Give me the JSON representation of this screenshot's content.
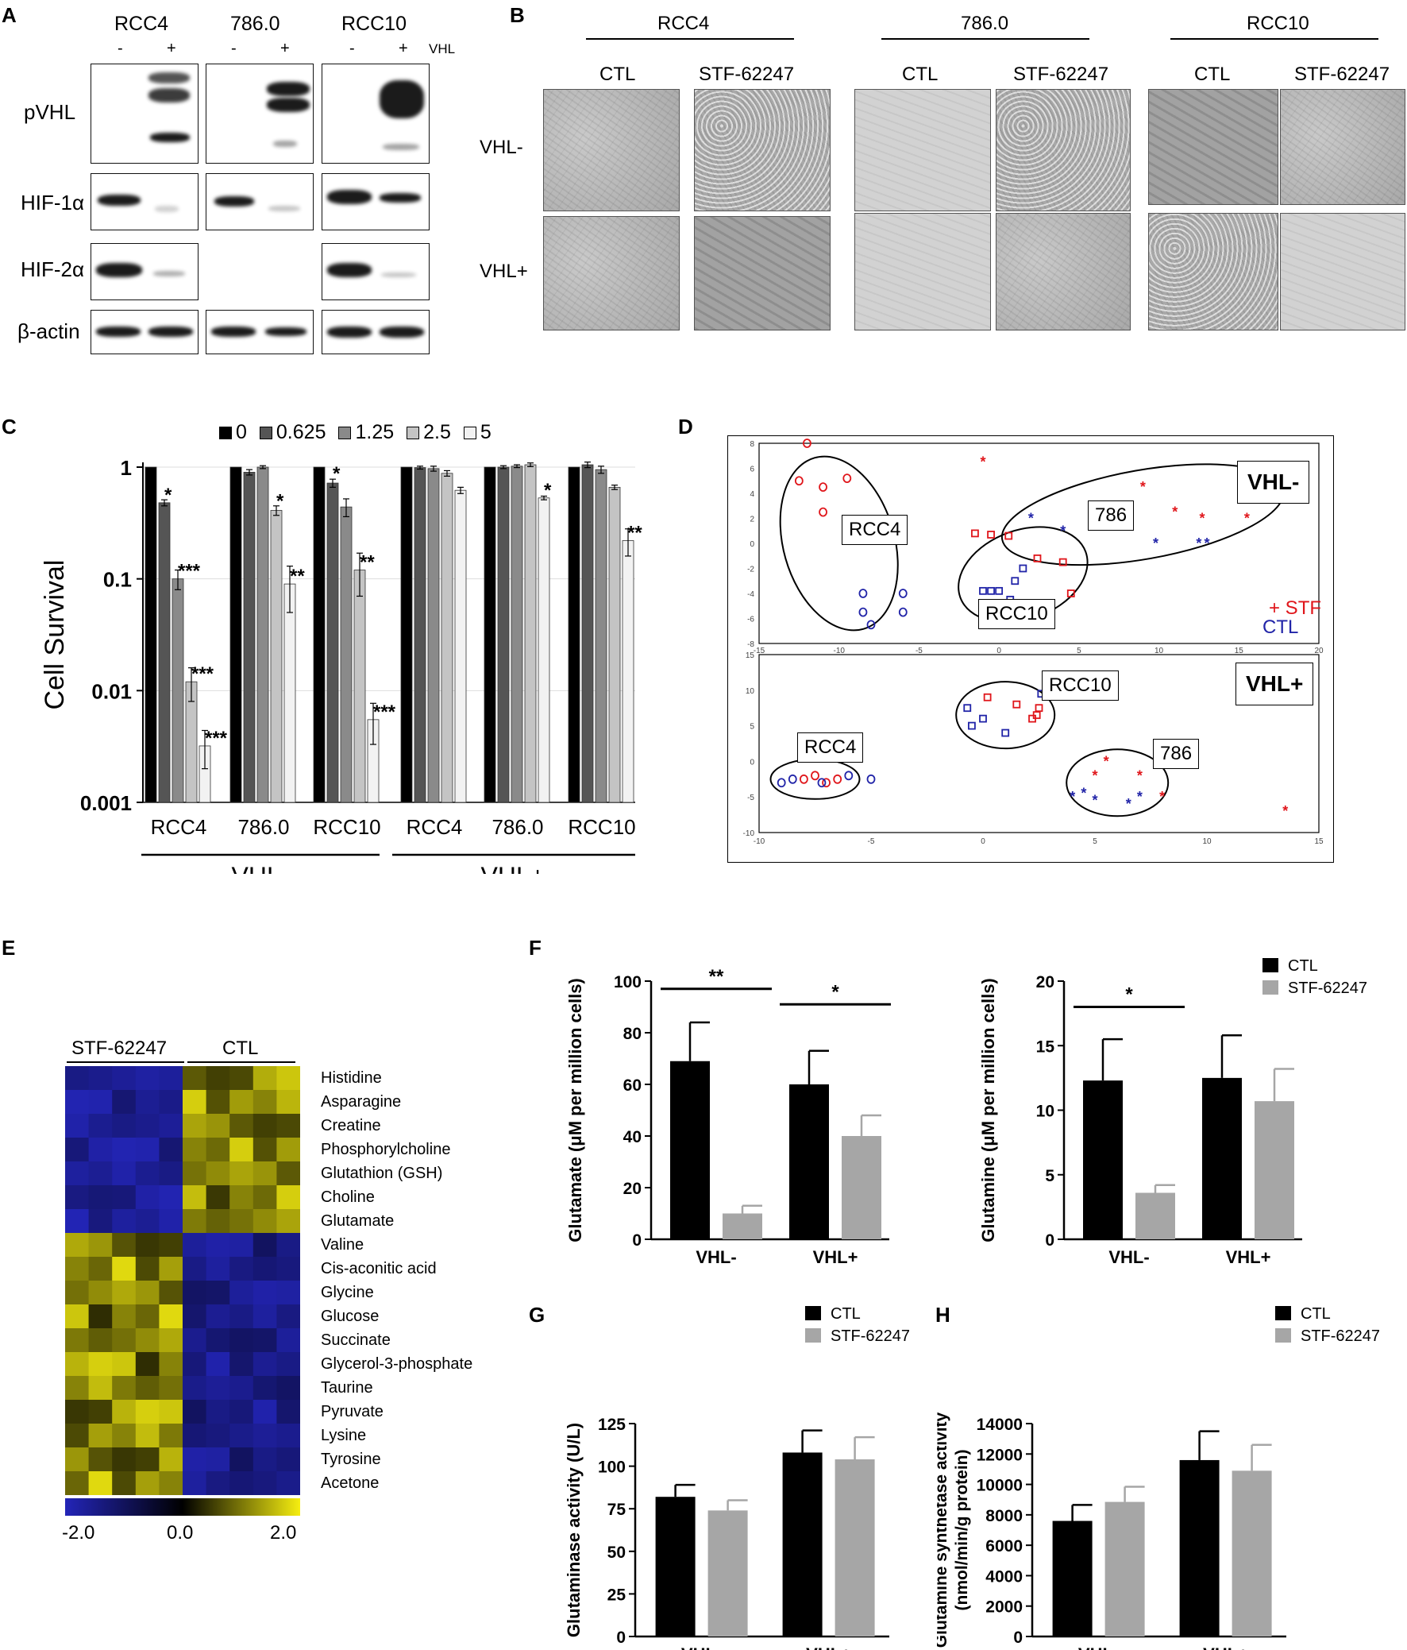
{
  "panelA": {
    "label": "A",
    "lines": [
      "RCC4",
      "786.0",
      "RCC10"
    ],
    "vhl_marks": [
      "-",
      "+",
      "-",
      "+",
      "-",
      "+"
    ],
    "vhl_label": "VHL",
    "rows": [
      "pVHL",
      "HIF-1α",
      "HIF-2α",
      "β-actin"
    ]
  },
  "panelB": {
    "label": "B",
    "lines": [
      "RCC4",
      "786.0",
      "RCC10"
    ],
    "conditions": [
      "CTL",
      "STF-62247"
    ],
    "rows": [
      "VHL-",
      "VHL+"
    ]
  },
  "panelC": {
    "label": "C",
    "legend": [
      "0",
      "0.625",
      "1.25",
      "2.5",
      "5"
    ],
    "ylabel": "Cell Survival",
    "yticks": [
      "1",
      "0.1",
      "0.01",
      "0.001"
    ],
    "groups": [
      "RCC4",
      "786.0",
      "RCC10",
      "RCC4",
      "786.0",
      "RCC10"
    ],
    "brackets": [
      "VHL-",
      "VHL+"
    ],
    "significance": [
      "*",
      "***",
      "***",
      "***",
      "*",
      "**",
      "*",
      "**",
      "***",
      "*",
      "**"
    ]
  },
  "panelD": {
    "label": "D",
    "top": {
      "box": "VHL-",
      "groups": [
        "RCC4",
        "786",
        "RCC10"
      ],
      "legend_stf": "+ STF",
      "legend_ctl": "CTL",
      "xticks": [
        "-15",
        "-10",
        "-5",
        "0",
        "5",
        "10",
        "15",
        "20"
      ],
      "yticks": [
        "8",
        "6",
        "4",
        "2",
        "0",
        "-2",
        "-4",
        "-6",
        "-8"
      ]
    },
    "bottom": {
      "box": "VHL+",
      "groups": [
        "RCC10",
        "RCC4",
        "786"
      ],
      "xticks": [
        "-10",
        "-5",
        "0",
        "5",
        "10",
        "15"
      ],
      "yticks": [
        "15",
        "10",
        "5",
        "0",
        "-5",
        "-10"
      ]
    }
  },
  "panelE": {
    "label": "E",
    "groups": [
      "STF-62247",
      "CTL"
    ],
    "metabolites": [
      "Histidine",
      "Asparagine",
      "Creatine",
      "Phosphorylcholine",
      "Glutathion (GSH)",
      "Choline",
      "Glutamate",
      "Valine",
      "Cis-aconitic acid",
      "Glycine",
      "Glucose",
      "Succinate",
      "Glycerol-3-phosphate",
      "Taurine",
      "Pyruvate",
      "Lysine",
      "Tyrosine",
      "Acetone"
    ],
    "scale": [
      "-2.0",
      "0.0",
      "2.0"
    ]
  },
  "panelF_label": "F",
  "panelG_label": "G",
  "panelH_label": "H",
  "colors": {
    "ctl": "#000000",
    "stf": "#a6a6a6",
    "red": "#e0161b",
    "blue": "#2124a8"
  },
  "chart_data": [
    {
      "id": "C",
      "type": "bar",
      "log_y": true,
      "ylim": [
        0.001,
        1
      ],
      "ylabel": "Cell Survival",
      "categories": [
        "RCC4",
        "786.0",
        "RCC10",
        "RCC4",
        "786.0",
        "RCC10"
      ],
      "series": [
        {
          "name": "0",
          "values": [
            1,
            1,
            1,
            1,
            1,
            1
          ]
        },
        {
          "name": "0.625",
          "values": [
            0.48,
            0.9,
            0.72,
            0.99,
            1.0,
            1.05
          ]
        },
        {
          "name": "1.25",
          "values": [
            0.1,
            1.0,
            0.44,
            0.97,
            1.02,
            0.95
          ]
        },
        {
          "name": "2.5",
          "values": [
            0.012,
            0.41,
            0.12,
            0.88,
            1.05,
            0.66
          ]
        },
        {
          "name": "5",
          "values": [
            0.0032,
            0.09,
            0.0055,
            0.62,
            0.53,
            0.22
          ]
        }
      ]
    },
    {
      "id": "F1",
      "type": "bar",
      "ylabel": "Glutamate (μM per million cells)",
      "categories": [
        "VHL-",
        "VHL+"
      ],
      "ylim": [
        0,
        100
      ],
      "yticks": [
        "0",
        "20",
        "40",
        "60",
        "80",
        "100"
      ],
      "series": [
        {
          "values": [
            69,
            60
          ]
        },
        {
          "values": [
            10,
            40
          ]
        }
      ],
      "errors": [
        [
          15,
          13
        ],
        [
          3,
          8
        ]
      ],
      "sig": [
        "**",
        "*"
      ]
    },
    {
      "id": "F2",
      "type": "bar",
      "ylabel": "Glutamine (μM per million cells)",
      "categories": [
        "VHL-",
        "VHL+"
      ],
      "ylim": [
        0,
        20
      ],
      "yticks": [
        "0",
        "5",
        "10",
        "15",
        "20"
      ],
      "series": [
        {
          "name": "CTL",
          "values": [
            12.3,
            12.5
          ]
        },
        {
          "name": "STF-62247",
          "values": [
            3.6,
            10.7
          ]
        }
      ],
      "errors": [
        [
          3.2,
          3.3
        ],
        [
          0.6,
          2.5
        ]
      ],
      "sig": [
        "*"
      ]
    },
    {
      "id": "G",
      "type": "bar",
      "ylabel": "Glutaminase activity (U/L)",
      "categories": [
        "VHL-",
        "VHL+"
      ],
      "ylim": [
        0,
        125
      ],
      "yticks": [
        "0",
        "25",
        "50",
        "75",
        "100",
        "125"
      ],
      "series": [
        {
          "name": "CTL",
          "values": [
            82,
            108
          ]
        },
        {
          "name": "STF-62247",
          "values": [
            74,
            104
          ]
        }
      ],
      "errors": [
        [
          7,
          13
        ],
        [
          6,
          13
        ]
      ]
    },
    {
      "id": "H",
      "type": "bar",
      "ylabel1": "Glutamine synthetase activity",
      "ylabel2": "(nmol/min/g protein)",
      "categories": [
        "VHL-",
        "VHL+"
      ],
      "ylim": [
        0,
        14000
      ],
      "yticks": [
        "0",
        "2000",
        "4000",
        "6000",
        "8000",
        "10000",
        "12000",
        "14000"
      ],
      "series": [
        {
          "name": "CTL",
          "values": [
            7600,
            11600
          ]
        },
        {
          "name": "STF-62247",
          "values": [
            8850,
            10900
          ]
        }
      ],
      "errors": [
        [
          1050,
          1900
        ],
        [
          1000,
          1700
        ]
      ]
    }
  ]
}
